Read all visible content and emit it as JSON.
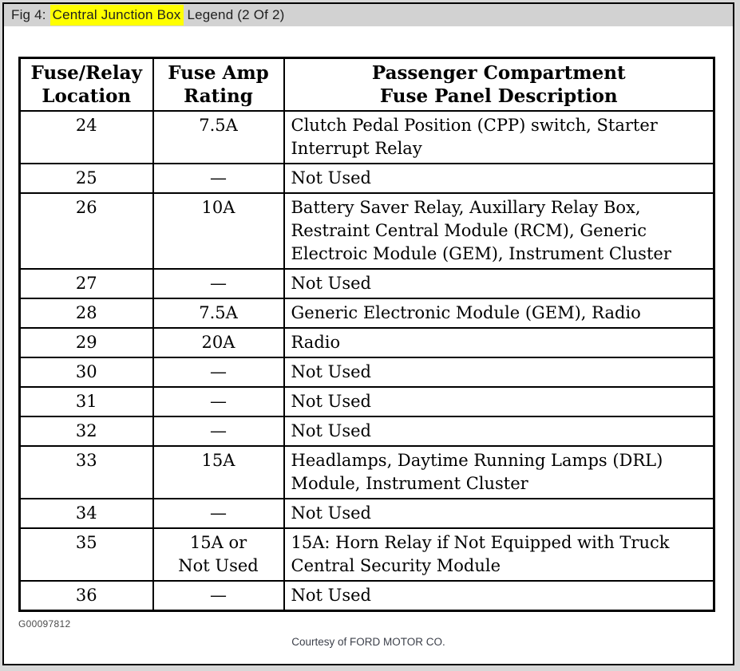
{
  "caption": {
    "prefix": "Fig 4: ",
    "highlight": "Central Junction Box",
    "suffix": " Legend (2 Of 2)",
    "highlight_color": "#ffff00",
    "bar_color": "#d2d2d2"
  },
  "table": {
    "headers": [
      "Fuse/Relay\nLocation",
      "Fuse Amp\nRating",
      "Passenger Compartment\nFuse Panel Description"
    ],
    "rows": [
      {
        "location": "24",
        "rating": "7.5A",
        "description": "Clutch Pedal Position (CPP) switch, Starter Interrupt Relay"
      },
      {
        "location": "25",
        "rating": "—",
        "description": "Not Used"
      },
      {
        "location": "26",
        "rating": "10A",
        "description": "Battery Saver Relay, Auxillary Relay Box, Restraint Central Module (RCM), Generic Electroic Module (GEM), Instrument Cluster"
      },
      {
        "location": "27",
        "rating": "—",
        "description": "Not Used"
      },
      {
        "location": "28",
        "rating": "7.5A",
        "description": "Generic Electronic Module (GEM), Radio"
      },
      {
        "location": "29",
        "rating": "20A",
        "description": "Radio"
      },
      {
        "location": "30",
        "rating": "—",
        "description": "Not Used"
      },
      {
        "location": "31",
        "rating": "—",
        "description": "Not Used"
      },
      {
        "location": "32",
        "rating": "—",
        "description": "Not Used"
      },
      {
        "location": "33",
        "rating": "15A",
        "description": "Headlamps, Daytime Running Lamps (DRL) Module, Instrument Cluster"
      },
      {
        "location": "34",
        "rating": "—",
        "description": "Not Used"
      },
      {
        "location": "35",
        "rating": "15A or\nNot Used",
        "description": "15A: Horn Relay if Not Equipped with Truck Central Security Module"
      },
      {
        "location": "36",
        "rating": "—",
        "description": "Not Used"
      }
    ]
  },
  "footer": {
    "figure_code": "G00097812",
    "courtesy": "Courtesy of FORD MOTOR CO."
  }
}
